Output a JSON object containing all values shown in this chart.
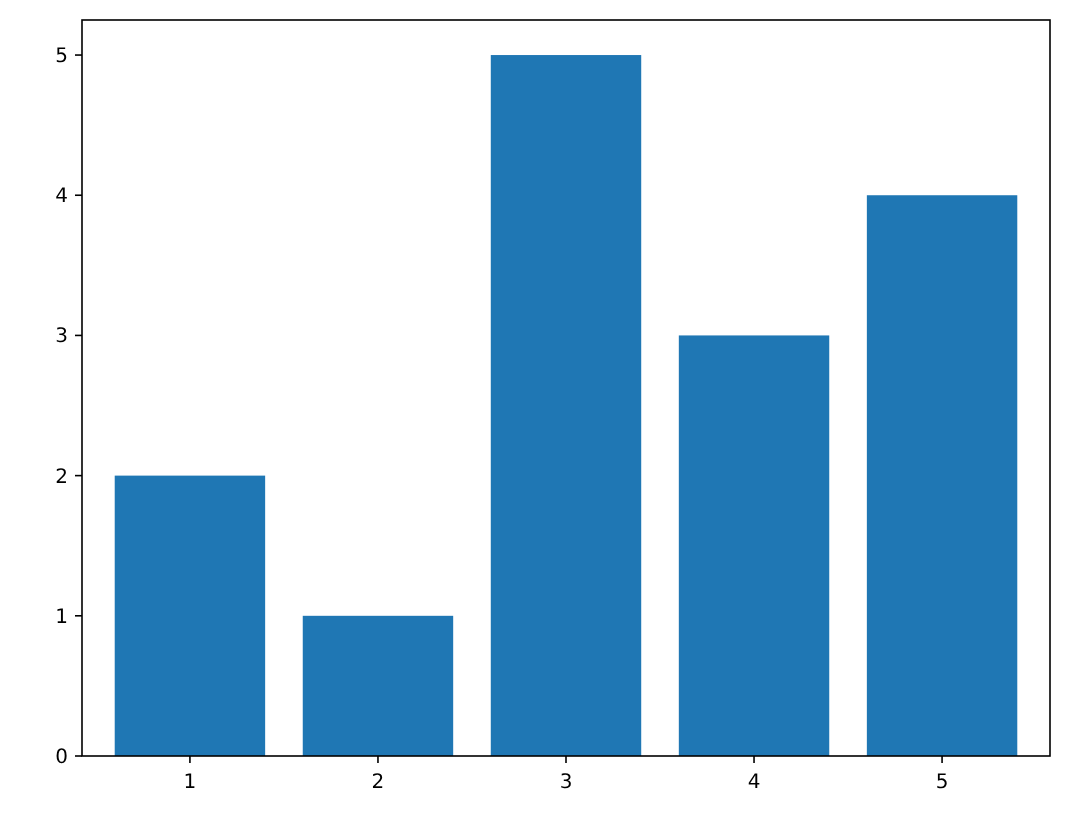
{
  "chart_data": {
    "type": "bar",
    "categories": [
      "1",
      "2",
      "3",
      "4",
      "5"
    ],
    "values": [
      2,
      1,
      5,
      3,
      4
    ],
    "color": "#1f77b4",
    "ylim": [
      0,
      5.25
    ],
    "yticks": [
      0,
      1,
      2,
      3,
      4,
      5
    ],
    "grid": false
  }
}
